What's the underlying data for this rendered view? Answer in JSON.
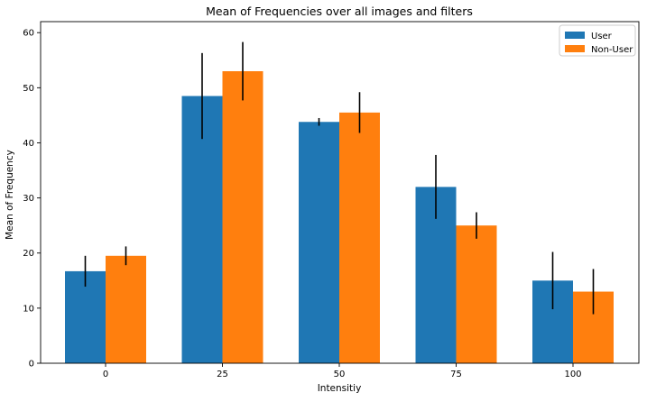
{
  "chart_data": {
    "type": "bar",
    "title": "Mean of Frequencies over all images and filters",
    "xlabel": "Intensitiy",
    "ylabel": "Mean of Frequency",
    "categories": [
      "0",
      "25",
      "50",
      "75",
      "100"
    ],
    "ylim": [
      0,
      62
    ],
    "yticks": [
      0,
      10,
      20,
      30,
      40,
      50,
      60
    ],
    "grid": false,
    "legend_position": "top-right",
    "series": [
      {
        "name": "User",
        "color": "#1f77b4",
        "values": [
          16.7,
          48.5,
          43.8,
          32.0,
          15.0
        ],
        "errors": [
          2.8,
          7.8,
          0.7,
          5.8,
          5.2
        ]
      },
      {
        "name": "Non-User",
        "color": "#ff7f0e",
        "values": [
          19.5,
          53.0,
          45.5,
          25.0,
          13.0
        ],
        "errors": [
          1.7,
          5.3,
          3.7,
          2.4,
          4.1
        ]
      }
    ]
  }
}
